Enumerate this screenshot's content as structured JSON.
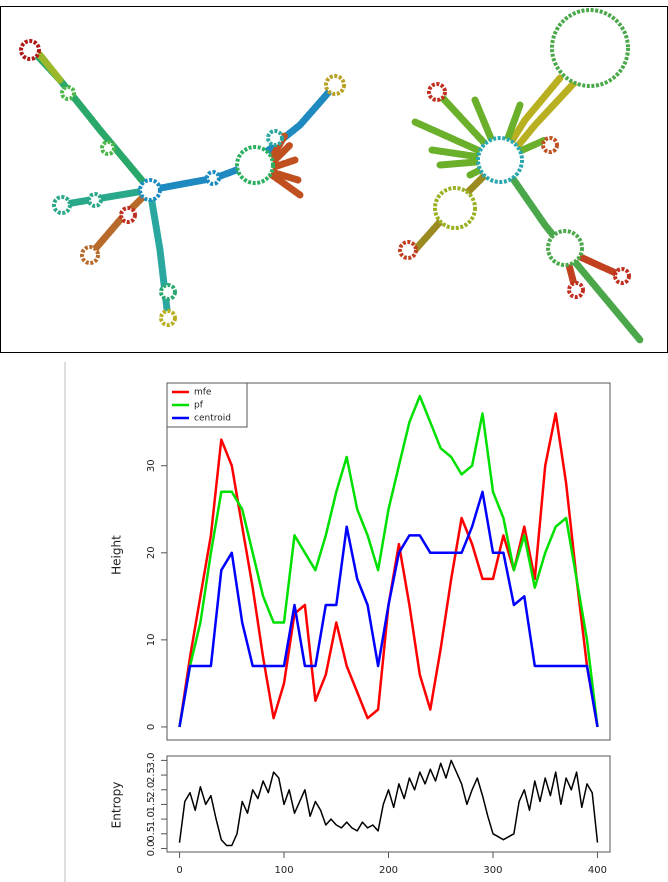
{
  "chart_data": [
    {
      "type": "line",
      "y_label": "Height",
      "legend": "top-left",
      "xlim": [
        -12,
        412
      ],
      "ylim": [
        -1.5,
        39.5
      ],
      "yticks": [
        0,
        10,
        20,
        30
      ],
      "x": [
        0,
        10,
        20,
        30,
        40,
        50,
        60,
        70,
        80,
        90,
        100,
        110,
        120,
        130,
        140,
        150,
        160,
        170,
        180,
        190,
        200,
        210,
        220,
        230,
        240,
        250,
        260,
        270,
        280,
        290,
        300,
        310,
        320,
        330,
        340,
        350,
        360,
        370,
        380,
        390,
        400
      ],
      "series": [
        {
          "name": "mfe",
          "color": "#ff0000",
          "values": [
            0,
            8,
            15,
            22,
            33,
            30,
            23,
            16,
            8,
            1,
            5,
            13,
            14,
            3,
            6,
            12,
            7,
            4,
            1,
            2,
            14,
            21,
            14,
            6,
            2,
            9,
            17,
            24,
            21,
            17,
            17,
            22,
            18,
            23,
            17,
            30,
            36,
            28,
            17,
            7,
            0
          ]
        },
        {
          "name": "pf",
          "color": "#00e000",
          "values": [
            0,
            7,
            12,
            20,
            27,
            27,
            25,
            20,
            15,
            12,
            12,
            22,
            20,
            18,
            22,
            27,
            31,
            25,
            22,
            18,
            25,
            30,
            35,
            38,
            35,
            32,
            31,
            29,
            30,
            36,
            27,
            24,
            18,
            22,
            16,
            20,
            23,
            24,
            17,
            10,
            0
          ]
        },
        {
          "name": "centroid",
          "color": "#0000ff",
          "values": [
            0,
            7,
            7,
            7,
            18,
            20,
            12,
            7,
            7,
            7,
            7,
            14,
            7,
            7,
            14,
            14,
            23,
            17,
            14,
            7,
            14,
            20,
            22,
            22,
            20,
            20,
            20,
            20,
            23,
            27,
            20,
            20,
            14,
            15,
            7,
            7,
            7,
            7,
            7,
            7,
            0
          ]
        }
      ]
    },
    {
      "type": "line",
      "y_label": "Entropy",
      "xlim": [
        -12,
        412
      ],
      "ylim": [
        -0.12,
        3.15
      ],
      "yticks": [
        {
          "value": 0,
          "label": "0.0"
        },
        {
          "value": 0.5,
          "label": "0.5"
        },
        {
          "value": 1,
          "label": "1.0"
        },
        {
          "value": 1.5,
          "label": "1.5"
        },
        {
          "value": 2,
          "label": "2.0"
        },
        {
          "value": 2.5,
          "label": "2.5"
        },
        {
          "value": 3,
          "label": "3.0"
        }
      ],
      "xticks": [
        0,
        100,
        200,
        300,
        400
      ],
      "color": "#000000",
      "x": [
        0,
        5,
        10,
        15,
        20,
        25,
        30,
        35,
        40,
        45,
        50,
        55,
        60,
        65,
        70,
        75,
        80,
        85,
        90,
        95,
        100,
        105,
        110,
        115,
        120,
        125,
        130,
        135,
        140,
        145,
        150,
        155,
        160,
        165,
        170,
        175,
        180,
        185,
        190,
        195,
        200,
        205,
        210,
        215,
        220,
        225,
        230,
        235,
        240,
        245,
        250,
        255,
        260,
        265,
        270,
        275,
        280,
        285,
        290,
        295,
        300,
        305,
        310,
        315,
        320,
        325,
        330,
        335,
        340,
        345,
        350,
        355,
        360,
        365,
        370,
        375,
        380,
        385,
        390,
        395,
        400
      ],
      "values": [
        0.2,
        1.6,
        1.9,
        1.3,
        2.1,
        1.5,
        1.8,
        1.0,
        0.3,
        0.1,
        0.1,
        0.5,
        1.6,
        1.2,
        2.0,
        1.7,
        2.3,
        1.9,
        2.6,
        2.4,
        1.5,
        2.0,
        1.2,
        1.6,
        2.0,
        1.1,
        1.6,
        1.3,
        0.8,
        1.0,
        0.8,
        0.7,
        0.9,
        0.7,
        0.6,
        0.9,
        0.7,
        0.8,
        0.6,
        1.5,
        2.0,
        1.4,
        2.2,
        1.7,
        2.4,
        2.0,
        2.6,
        2.2,
        2.7,
        2.3,
        2.9,
        2.4,
        3.0,
        2.6,
        2.2,
        1.5,
        2.0,
        2.4,
        1.8,
        1.1,
        0.5,
        0.4,
        0.3,
        0.4,
        0.5,
        1.6,
        2.0,
        1.3,
        2.3,
        1.6,
        2.4,
        1.8,
        2.6,
        1.5,
        2.4,
        2.0,
        2.6,
        1.4,
        2.2,
        1.9,
        0.2
      ]
    }
  ]
}
